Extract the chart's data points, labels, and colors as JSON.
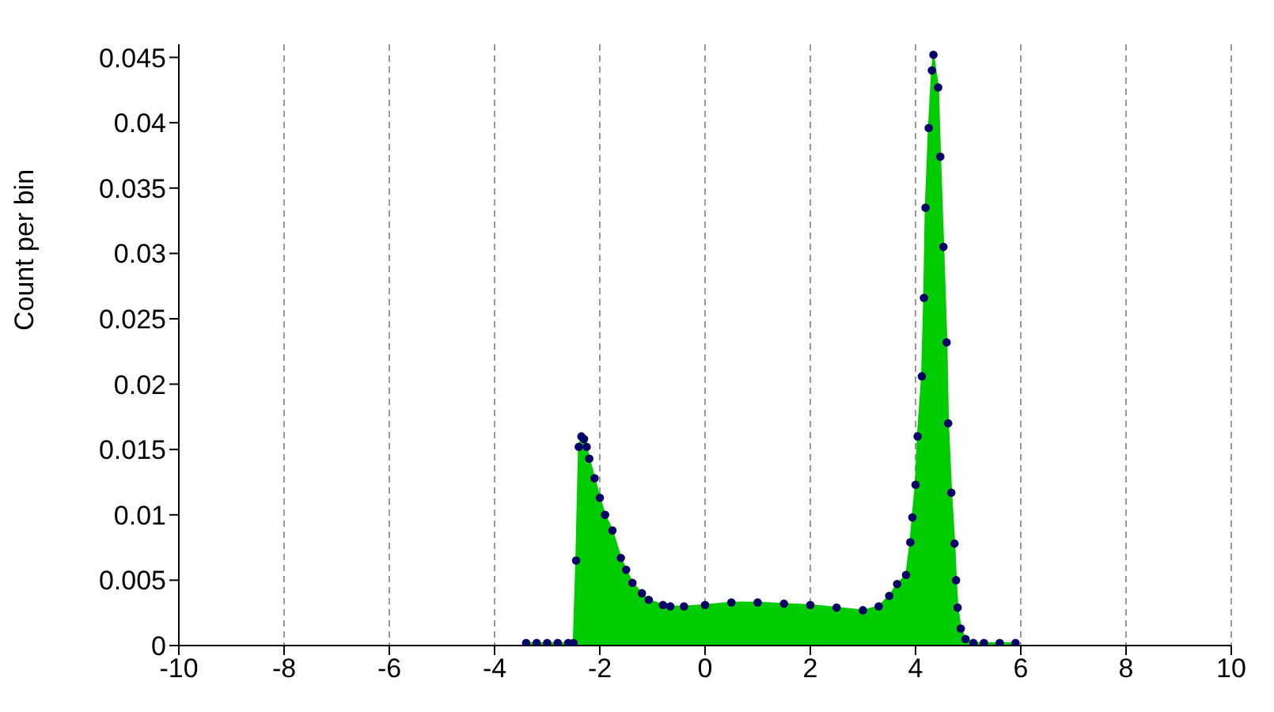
{
  "chart_data": {
    "type": "area",
    "ylabel": "Count per bin",
    "x": [
      -3.4,
      -3.2,
      -3.0,
      -2.8,
      -2.6,
      -2.5,
      -2.45,
      -2.4,
      -2.35,
      -2.3,
      -2.25,
      -2.2,
      -2.1,
      -2.0,
      -1.9,
      -1.76,
      -1.6,
      -1.5,
      -1.38,
      -1.2,
      -1.07,
      -0.8,
      -0.66,
      -0.4,
      0,
      0.5,
      1,
      1.5,
      2,
      2.5,
      3,
      3.3,
      3.5,
      3.65,
      3.82,
      3.9,
      3.94,
      4.0,
      4.04,
      4.12,
      4.16,
      4.19,
      4.25,
      4.31,
      4.34,
      4.43,
      4.47,
      4.53,
      4.59,
      4.62,
      4.68,
      4.74,
      4.77,
      4.8,
      4.86,
      4.95,
      5.1,
      5.3,
      5.6,
      5.9
    ],
    "series": [
      {
        "color": "#00cc00",
        "values": [
          0.0002,
          0.0002,
          0.0002,
          0.0002,
          0.0002,
          0.0002,
          0.0065,
          0.0152,
          0.016,
          0.0158,
          0.0152,
          0.0143,
          0.0128,
          0.0113,
          0.01,
          0.0088,
          0.0067,
          0.0058,
          0.0048,
          0.004,
          0.0035,
          0.0031,
          0.003,
          0.003,
          0.0031,
          0.0033,
          0.0033,
          0.0032,
          0.0031,
          0.0029,
          0.0027,
          0.003,
          0.0038,
          0.0047,
          0.0054,
          0.0079,
          0.0098,
          0.0123,
          0.016,
          0.0206,
          0.0266,
          0.0335,
          0.0396,
          0.044,
          0.0452,
          0.0427,
          0.0374,
          0.0305,
          0.0232,
          0.017,
          0.0117,
          0.0078,
          0.005,
          0.0029,
          0.0013,
          0.0005,
          0.0002,
          0.0002,
          0.0002,
          0.0002
        ]
      },
      {
        "type": "scatter",
        "marker": "circle",
        "color": "#000066",
        "values": [
          0.0002,
          0.0002,
          0.0002,
          0.0002,
          0.0002,
          0.0002,
          0.0065,
          0.0152,
          0.016,
          0.0158,
          0.0152,
          0.0143,
          0.0128,
          0.0113,
          0.01,
          0.0088,
          0.0067,
          0.0058,
          0.0048,
          0.004,
          0.0035,
          0.0031,
          0.003,
          0.003,
          0.0031,
          0.0033,
          0.0033,
          0.0032,
          0.0031,
          0.0029,
          0.0027,
          0.003,
          0.0038,
          0.0047,
          0.0054,
          0.0079,
          0.0098,
          0.0123,
          0.016,
          0.0206,
          0.0266,
          0.0335,
          0.0396,
          0.044,
          0.0452,
          0.0427,
          0.0374,
          0.0305,
          0.0232,
          0.017,
          0.0117,
          0.0078,
          0.005,
          0.0029,
          0.0013,
          0.0005,
          0.0002,
          0.0002,
          0.0002,
          0.0002
        ]
      }
    ],
    "xlim": [
      -10,
      10
    ],
    "xticks": [
      -10,
      -8,
      -6,
      -4,
      -2,
      0,
      2,
      4,
      6,
      8,
      10
    ],
    "ylim": [
      0,
      0.046
    ],
    "yticks": [
      0,
      0.005,
      0.01,
      0.015,
      0.02,
      0.025,
      0.03,
      0.035,
      0.04,
      0.045
    ],
    "grid": "x"
  }
}
